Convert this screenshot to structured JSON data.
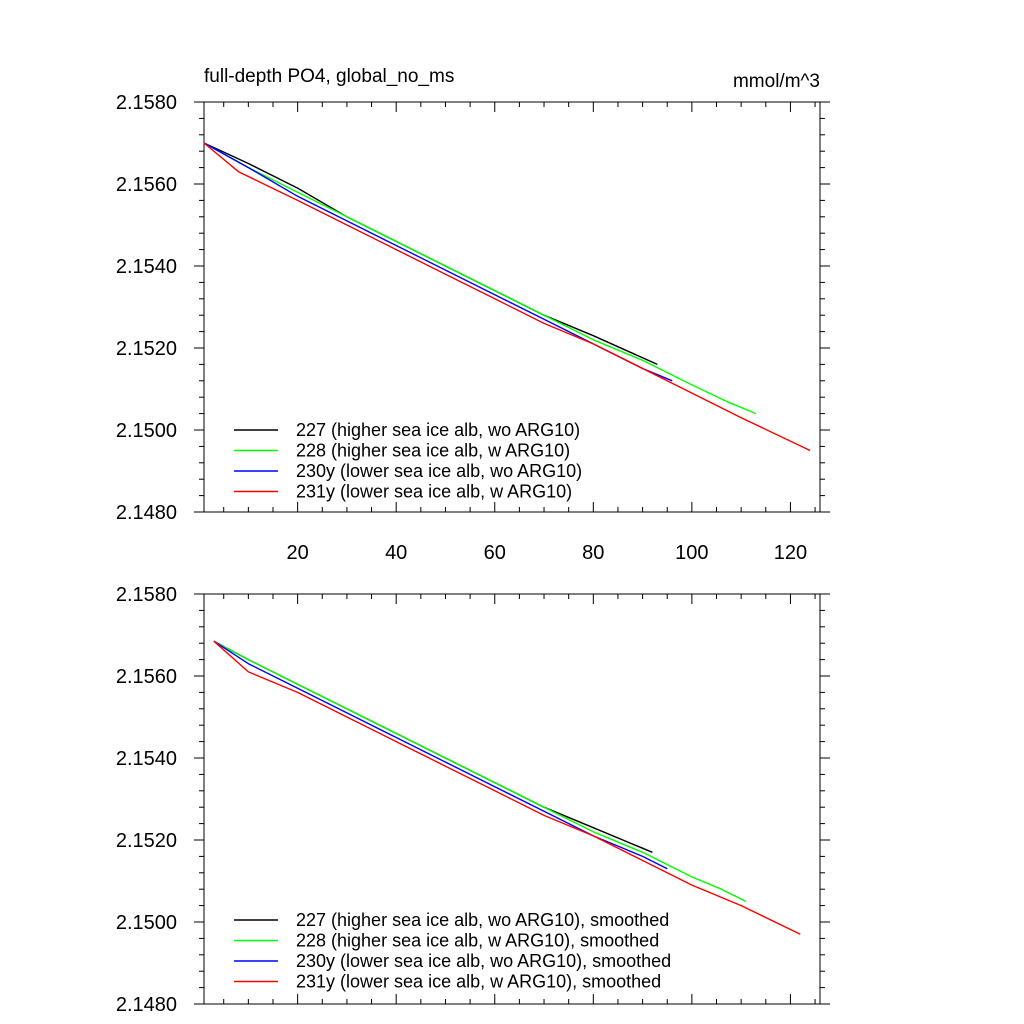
{
  "chart_data": [
    {
      "type": "line",
      "title": "full-depth PO4, global_no_ms",
      "units": "mmol/m^3",
      "xlim": [
        1,
        126
      ],
      "ylim": [
        2.148,
        2.158
      ],
      "x_major_ticks": [
        20,
        40,
        60,
        80,
        100,
        120
      ],
      "x_tick_labels": [
        "20",
        "40",
        "60",
        "80",
        "100",
        "120"
      ],
      "y_major_ticks": [
        2.148,
        2.15,
        2.152,
        2.154,
        2.156,
        2.158
      ],
      "y_tick_labels": [
        "2.1480",
        "2.1500",
        "2.1520",
        "2.1540",
        "2.1560",
        "2.1580"
      ],
      "legend_position": "bottom-left",
      "series": [
        {
          "name": "227 (higher sea ice alb, wo ARG10)",
          "color": "#000000",
          "x": [
            1,
            10,
            20,
            30,
            40,
            50,
            60,
            70,
            80,
            93
          ],
          "y": [
            2.157,
            2.1565,
            2.1559,
            2.1552,
            2.1546,
            2.154,
            2.1534,
            2.1528,
            2.1523,
            2.1516
          ]
        },
        {
          "name": "228 (higher sea ice alb, w ARG10)",
          "color": "#00ff00",
          "x": [
            1,
            10,
            20,
            30,
            40,
            50,
            60,
            70,
            80,
            90,
            100,
            107,
            113
          ],
          "y": [
            2.157,
            2.1564,
            2.1558,
            2.1552,
            2.1546,
            2.154,
            2.1534,
            2.1528,
            2.1522,
            2.1517,
            2.1511,
            2.1507,
            2.1504
          ]
        },
        {
          "name": "230y (lower sea ice alb, wo ARG10)",
          "color": "#0000ff",
          "x": [
            1,
            10,
            20,
            30,
            40,
            50,
            60,
            70,
            80,
            90,
            96
          ],
          "y": [
            2.157,
            2.1564,
            2.1557,
            2.1551,
            2.1545,
            2.1539,
            2.1533,
            2.1527,
            2.1521,
            2.1515,
            2.1512
          ]
        },
        {
          "name": "231y (lower sea ice alb, w ARG10)",
          "color": "#ff0000",
          "x": [
            1,
            8,
            20,
            30,
            40,
            50,
            60,
            70,
            80,
            90,
            100,
            110,
            124
          ],
          "y": [
            2.157,
            2.1563,
            2.1556,
            2.155,
            2.1544,
            2.1538,
            2.1532,
            2.1526,
            2.1521,
            2.1515,
            2.1509,
            2.1503,
            2.1495
          ]
        }
      ]
    },
    {
      "type": "line",
      "title": "",
      "xlim": [
        1,
        126
      ],
      "ylim": [
        2.148,
        2.158
      ],
      "x_major_ticks": [
        20,
        40,
        60,
        80,
        100,
        120
      ],
      "y_major_ticks": [
        2.148,
        2.15,
        2.152,
        2.154,
        2.156,
        2.158
      ],
      "y_tick_labels": [
        "2.1480",
        "2.1500",
        "2.1520",
        "2.1540",
        "2.1560",
        "2.1580"
      ],
      "legend_position": "bottom-left",
      "series": [
        {
          "name": "227 (higher sea ice alb, wo ARG10), smoothed",
          "color": "#000000",
          "x": [
            3,
            10,
            20,
            30,
            40,
            50,
            60,
            70,
            80,
            92
          ],
          "y": [
            2.15685,
            2.1564,
            2.1558,
            2.1552,
            2.1546,
            2.154,
            2.1534,
            2.1528,
            2.1523,
            2.1517
          ]
        },
        {
          "name": "228 (higher sea ice alb, w ARG10), smoothed",
          "color": "#00ff00",
          "x": [
            3,
            10,
            20,
            30,
            40,
            50,
            60,
            70,
            80,
            90,
            100,
            106,
            111
          ],
          "y": [
            2.15685,
            2.1564,
            2.1558,
            2.1552,
            2.1546,
            2.154,
            2.1534,
            2.1528,
            2.1522,
            2.1517,
            2.1511,
            2.1508,
            2.1505
          ]
        },
        {
          "name": "230y (lower sea ice alb, wo ARG10), smoothed",
          "color": "#0000ff",
          "x": [
            3,
            10,
            20,
            30,
            40,
            50,
            60,
            70,
            80,
            90,
            95
          ],
          "y": [
            2.15685,
            2.1563,
            2.1557,
            2.1551,
            2.1545,
            2.1539,
            2.1533,
            2.1527,
            2.1521,
            2.1516,
            2.1513
          ]
        },
        {
          "name": "231y (lower sea ice alb, w ARG10), smoothed",
          "color": "#ff0000",
          "x": [
            3,
            10,
            20,
            30,
            40,
            50,
            60,
            70,
            80,
            90,
            100,
            110,
            122
          ],
          "y": [
            2.15685,
            2.1561,
            2.1556,
            2.155,
            2.1544,
            2.1538,
            2.1532,
            2.1526,
            2.1521,
            2.1515,
            2.1509,
            2.1504,
            2.1497
          ]
        }
      ]
    }
  ]
}
